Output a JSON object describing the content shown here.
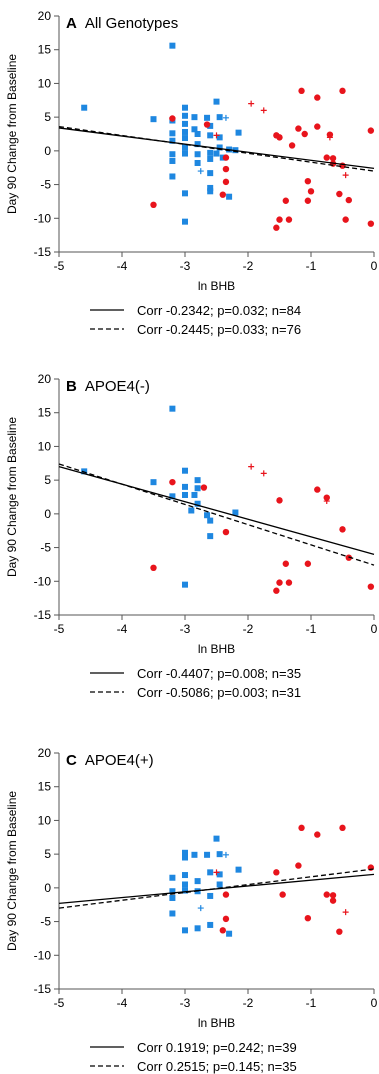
{
  "colors": {
    "minus": "#e8141c",
    "plus": "#1e87e0",
    "fit": "#000000"
  },
  "chart_data": [
    {
      "type": "scatter",
      "panel": "A",
      "title": "All Genotypes",
      "xlabel": "ln BHB",
      "ylabel": "Day 90 Change from Baseline",
      "xlim": [
        -5,
        0
      ],
      "ylim": [
        -15,
        20
      ],
      "xticks": [
        "-5",
        "-4",
        "-3",
        "-2",
        "-1",
        "0"
      ],
      "yticks": [
        "-15",
        "-10",
        "-5",
        "0",
        "5",
        "10",
        "15",
        "20"
      ],
      "series": [
        {
          "marker": "square",
          "color": "#1e87e0",
          "points": [
            [
              -4.6,
              6.4
            ],
            [
              -3.2,
              15.6
            ],
            [
              -3.5,
              4.7
            ],
            [
              -3.2,
              4.5
            ],
            [
              -3.2,
              2.6
            ],
            [
              -3.2,
              1.5
            ],
            [
              -3.2,
              -0.5
            ],
            [
              -3.2,
              -1.5
            ],
            [
              -3.2,
              -3.8
            ],
            [
              -3.0,
              6.4
            ],
            [
              -3.0,
              5.2
            ],
            [
              -3.0,
              4.0
            ],
            [
              -3.0,
              2.8
            ],
            [
              -3.0,
              1.9
            ],
            [
              -3.0,
              0.5
            ],
            [
              -3.0,
              -0.4
            ],
            [
              -3.0,
              -6.3
            ],
            [
              -3.0,
              -10.5
            ],
            [
              -2.85,
              5.0
            ],
            [
              -2.85,
              3.2
            ],
            [
              -2.8,
              2.5
            ],
            [
              -2.8,
              1.0
            ],
            [
              -2.8,
              -0.5
            ],
            [
              -2.8,
              -1.8
            ],
            [
              -2.65,
              4.9
            ],
            [
              -2.6,
              3.7
            ],
            [
              -2.6,
              2.3
            ],
            [
              -2.6,
              -0.3
            ],
            [
              -2.6,
              -1.2
            ],
            [
              -2.6,
              -3.3
            ],
            [
              -2.6,
              -5.5
            ],
            [
              -2.6,
              -6.0
            ],
            [
              -2.5,
              7.3
            ],
            [
              -2.45,
              5.0
            ],
            [
              -2.45,
              2.0
            ],
            [
              -2.45,
              0.5
            ],
            [
              -2.4,
              -1.0
            ],
            [
              -2.3,
              -6.8
            ],
            [
              -2.3,
              0.2
            ],
            [
              -2.15,
              2.7
            ],
            [
              -2.2,
              0.1
            ],
            [
              -2.5,
              -0.4
            ]
          ]
        },
        {
          "marker": "plus",
          "color": "#1e87e0",
          "points": [
            [
              -2.75,
              -3.0
            ],
            [
              -2.35,
              4.9
            ]
          ]
        },
        {
          "marker": "circle",
          "color": "#e8141c",
          "points": [
            [
              -3.5,
              -8.0
            ],
            [
              -3.2,
              4.8
            ],
            [
              -2.65,
              3.9
            ],
            [
              -2.35,
              -1.0
            ],
            [
              -2.35,
              -2.7
            ],
            [
              -2.35,
              -4.6
            ],
            [
              -2.4,
              -6.5
            ],
            [
              -1.55,
              2.3
            ],
            [
              -1.5,
              2.0
            ],
            [
              -1.55,
              -11.4
            ],
            [
              -1.5,
              -10.2
            ],
            [
              -1.4,
              -7.4
            ],
            [
              -1.35,
              -10.2
            ],
            [
              -1.2,
              3.3
            ],
            [
              -1.3,
              0.8
            ],
            [
              -1.15,
              8.9
            ],
            [
              -1.1,
              2.5
            ],
            [
              -1.05,
              -4.5
            ],
            [
              -1.0,
              -6.0
            ],
            [
              -1.05,
              -7.4
            ],
            [
              -0.9,
              7.9
            ],
            [
              -0.9,
              3.6
            ],
            [
              -0.75,
              -1.0
            ],
            [
              -0.7,
              2.4
            ],
            [
              -0.65,
              -1.1
            ],
            [
              -0.65,
              -1.9
            ],
            [
              -0.55,
              -6.4
            ],
            [
              -0.5,
              8.9
            ],
            [
              -0.5,
              -2.2
            ],
            [
              -0.45,
              -10.2
            ],
            [
              -0.4,
              -7.3
            ],
            [
              -0.05,
              3.0
            ],
            [
              -0.05,
              -10.8
            ]
          ]
        },
        {
          "marker": "plus",
          "color": "#e8141c",
          "points": [
            [
              -2.5,
              2.3
            ],
            [
              -1.95,
              7.0
            ],
            [
              -1.75,
              6.0
            ],
            [
              -0.7,
              2.0
            ],
            [
              -0.45,
              -3.6
            ]
          ]
        }
      ],
      "fits": [
        {
          "style": "solid",
          "x": [
            -5,
            0
          ],
          "y": [
            3.4,
            -2.6
          ]
        },
        {
          "style": "dashed",
          "x": [
            -5,
            0
          ],
          "y": [
            3.6,
            -3.0
          ]
        }
      ],
      "legend": [
        {
          "style": "solid",
          "text": "Corr -0.2342; p=0.032; n=84"
        },
        {
          "style": "dashed",
          "text": "Corr -0.2445; p=0.033; n=76"
        }
      ]
    },
    {
      "type": "scatter",
      "panel": "B",
      "title": "APOE4(-)",
      "xlabel": "ln BHB",
      "ylabel": "Day 90 Change from Baseline",
      "xlim": [
        -5,
        0
      ],
      "ylim": [
        -15,
        20
      ],
      "xticks": [
        "-5",
        "-4",
        "-3",
        "-2",
        "-1",
        "0"
      ],
      "yticks": [
        "-15",
        "-10",
        "-5",
        "0",
        "5",
        "10",
        "15",
        "20"
      ],
      "series": [
        {
          "marker": "square",
          "color": "#1e87e0",
          "points": [
            [
              -4.6,
              6.3
            ],
            [
              -3.2,
              15.6
            ],
            [
              -3.5,
              4.7
            ],
            [
              -3.2,
              2.6
            ],
            [
              -3.0,
              6.4
            ],
            [
              -3.0,
              4.0
            ],
            [
              -3.0,
              2.8
            ],
            [
              -2.85,
              2.8
            ],
            [
              -2.8,
              1.5
            ],
            [
              -2.8,
              5.0
            ],
            [
              -2.8,
              3.8
            ],
            [
              -2.65,
              -0.2
            ],
            [
              -2.6,
              -1.0
            ],
            [
              -2.6,
              -3.3
            ],
            [
              -3.0,
              -10.5
            ],
            [
              -2.2,
              0.2
            ],
            [
              -2.9,
              0.5
            ]
          ]
        },
        {
          "marker": "circle",
          "color": "#e8141c",
          "points": [
            [
              -3.5,
              -8.0
            ],
            [
              -3.2,
              4.7
            ],
            [
              -2.7,
              3.9
            ],
            [
              -2.35,
              -2.7
            ],
            [
              -1.5,
              2.0
            ],
            [
              -1.55,
              -11.4
            ],
            [
              -1.5,
              -10.2
            ],
            [
              -1.4,
              -7.4
            ],
            [
              -1.35,
              -10.2
            ],
            [
              -1.05,
              -7.4
            ],
            [
              -0.9,
              3.6
            ],
            [
              -0.75,
              2.4
            ],
            [
              -0.5,
              -2.3
            ],
            [
              -0.4,
              -6.5
            ],
            [
              -0.05,
              -10.8
            ]
          ]
        },
        {
          "marker": "plus",
          "color": "#e8141c",
          "points": [
            [
              -1.95,
              7.0
            ],
            [
              -1.75,
              6.0
            ],
            [
              -0.75,
              1.9
            ]
          ]
        }
      ],
      "fits": [
        {
          "style": "solid",
          "x": [
            -5,
            0
          ],
          "y": [
            7.0,
            -6.0
          ]
        },
        {
          "style": "dashed",
          "x": [
            -5,
            0
          ],
          "y": [
            7.4,
            -7.6
          ]
        }
      ],
      "legend": [
        {
          "style": "solid",
          "text": "Corr -0.4407; p=0.008; n=35"
        },
        {
          "style": "dashed",
          "text": "Corr -0.5086; p=0.003; n=31"
        }
      ]
    },
    {
      "type": "scatter",
      "panel": "C",
      "title": "APOE4(+)",
      "xlabel": "ln BHB",
      "ylabel": "Day 90 Change from Baseline",
      "xlim": [
        -5,
        0
      ],
      "ylim": [
        -15,
        20
      ],
      "xticks": [
        "-5",
        "-4",
        "-3",
        "-2",
        "-1",
        "0"
      ],
      "yticks": [
        "-15",
        "-10",
        "-5",
        "0",
        "5",
        "10",
        "15",
        "20"
      ],
      "series": [
        {
          "marker": "square",
          "color": "#1e87e0",
          "points": [
            [
              -3.2,
              1.5
            ],
            [
              -3.2,
              -0.5
            ],
            [
              -3.2,
              -1.5
            ],
            [
              -3.2,
              -3.8
            ],
            [
              -3.0,
              5.2
            ],
            [
              -3.0,
              4.5
            ],
            [
              -3.0,
              1.9
            ],
            [
              -3.0,
              0.5
            ],
            [
              -3.0,
              -0.4
            ],
            [
              -3.0,
              -6.3
            ],
            [
              -2.85,
              4.9
            ],
            [
              -2.8,
              1.0
            ],
            [
              -2.8,
              -0.5
            ],
            [
              -2.8,
              -6.0
            ],
            [
              -2.65,
              4.9
            ],
            [
              -2.6,
              2.3
            ],
            [
              -2.6,
              -1.2
            ],
            [
              -2.6,
              -5.5
            ],
            [
              -2.5,
              7.3
            ],
            [
              -2.45,
              5.0
            ],
            [
              -2.45,
              2.0
            ],
            [
              -2.45,
              0.5
            ],
            [
              -2.3,
              -6.8
            ],
            [
              -2.15,
              2.7
            ]
          ]
        },
        {
          "marker": "plus",
          "color": "#1e87e0",
          "points": [
            [
              -2.75,
              -3.0
            ],
            [
              -2.35,
              4.9
            ]
          ]
        },
        {
          "marker": "circle",
          "color": "#e8141c",
          "points": [
            [
              -2.35,
              -1.0
            ],
            [
              -2.35,
              -4.6
            ],
            [
              -2.4,
              -6.3
            ],
            [
              -1.55,
              2.3
            ],
            [
              -1.45,
              -1.0
            ],
            [
              -1.2,
              3.3
            ],
            [
              -1.15,
              8.9
            ],
            [
              -1.05,
              -4.5
            ],
            [
              -0.9,
              7.9
            ],
            [
              -0.75,
              -1.0
            ],
            [
              -0.65,
              -1.1
            ],
            [
              -0.65,
              -1.9
            ],
            [
              -0.55,
              -6.5
            ],
            [
              -0.5,
              8.9
            ],
            [
              -0.05,
              3.0
            ]
          ]
        },
        {
          "marker": "plus",
          "color": "#e8141c",
          "points": [
            [
              -2.5,
              2.3
            ],
            [
              -0.45,
              -3.6
            ]
          ]
        }
      ],
      "fits": [
        {
          "style": "solid",
          "x": [
            -5,
            0
          ],
          "y": [
            -2.3,
            2.0
          ]
        },
        {
          "style": "dashed",
          "x": [
            -5,
            0
          ],
          "y": [
            -3.0,
            2.8
          ]
        }
      ],
      "legend": [
        {
          "style": "solid",
          "text": "Corr 0.1919; p=0.242; n=39"
        },
        {
          "style": "dashed",
          "text": "Corr 0.2515; p=0.145; n=35"
        }
      ]
    }
  ]
}
